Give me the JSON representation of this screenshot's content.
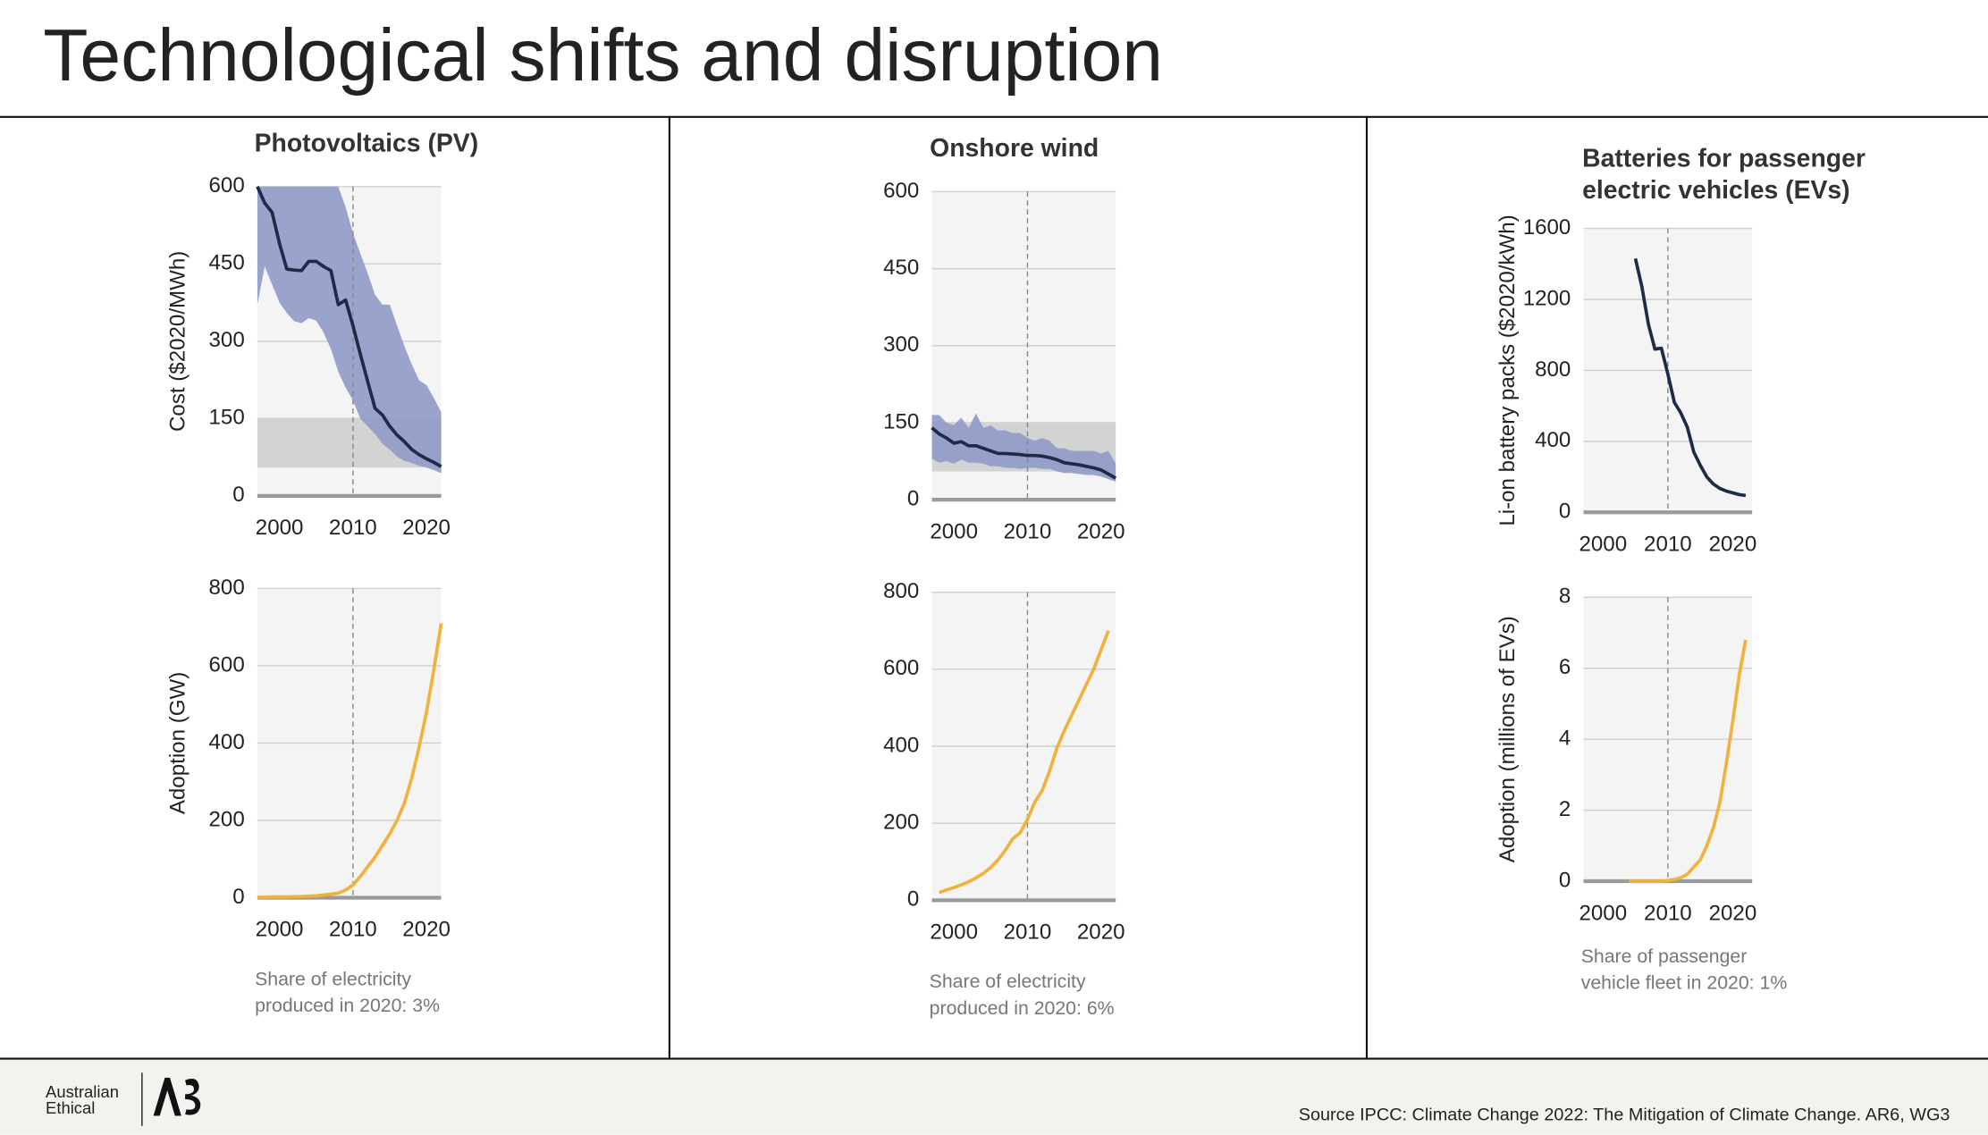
{
  "title": "Technological shifts and disruption",
  "chart_data": [
    {
      "type": "line",
      "title": [
        "Photovoltaics (PV)"
      ],
      "ylabel": "Cost ($2020/MWh)",
      "x": [
        1997,
        1998,
        1999,
        2000,
        2001,
        2002,
        2003,
        2004,
        2005,
        2006,
        2007,
        2008,
        2009,
        2010,
        2011,
        2012,
        2013,
        2014,
        2015,
        2016,
        2017,
        2018,
        2019,
        2020,
        2021,
        2022
      ],
      "values": [
        600,
        568,
        550,
        490,
        440,
        438,
        437,
        455,
        455,
        445,
        437,
        371,
        380,
        330,
        275,
        222,
        170,
        157,
        135,
        118,
        105,
        90,
        80,
        72,
        65,
        57
      ],
      "color": "#1f2a48",
      "range": {
        "color": "#8f9ac6",
        "upper": [
          600,
          600,
          600,
          600,
          600,
          600,
          600,
          600,
          600,
          600,
          600,
          600,
          560,
          510,
          470,
          432,
          390,
          371,
          371,
          330,
          290,
          255,
          224,
          215,
          190,
          162
        ],
        "lower": [
          371,
          445,
          410,
          375,
          355,
          339,
          335,
          345,
          340,
          317,
          285,
          241,
          210,
          185,
          150,
          135,
          120,
          101,
          90,
          76,
          68,
          64,
          58,
          55,
          50,
          44
        ]
      },
      "shaded_range": [
        55,
        150
      ],
      "shaded_color": "#d3d3d3",
      "reference_x": 2010,
      "xlim": [
        1997,
        2022
      ],
      "xticks": [
        2000,
        2010,
        2020
      ],
      "ylim": [
        0,
        600
      ],
      "yticks": [
        0,
        150,
        300,
        450,
        600
      ],
      "grid": true
    },
    {
      "type": "line",
      "ylabel": "Adoption (GW)",
      "x": [
        1997,
        1998,
        1999,
        2000,
        2001,
        2002,
        2003,
        2004,
        2005,
        2006,
        2007,
        2008,
        2009,
        2010,
        2011,
        2012,
        2013,
        2014,
        2015,
        2016,
        2017,
        2018,
        2019,
        2020,
        2021,
        2022
      ],
      "values": [
        1,
        1,
        2,
        2,
        2,
        3,
        3,
        4,
        5,
        7,
        9,
        12,
        20,
        33,
        55,
        80,
        105,
        135,
        165,
        200,
        245,
        310,
        390,
        480,
        590,
        710
      ],
      "color": "#f0b23e",
      "reference_x": 2010,
      "note": [
        "Share of electricity",
        "produced in 2020: 3%"
      ],
      "xlim": [
        1997,
        2022
      ],
      "xticks": [
        2000,
        2010,
        2020
      ],
      "ylim": [
        0,
        800
      ],
      "yticks": [
        0,
        200,
        400,
        600,
        800
      ],
      "grid": true
    },
    {
      "type": "line",
      "title": [
        "Onshore wind"
      ],
      "x": [
        1997,
        1998,
        1999,
        2000,
        2001,
        2002,
        2003,
        2004,
        2005,
        2006,
        2007,
        2008,
        2009,
        2010,
        2011,
        2012,
        2013,
        2014,
        2015,
        2016,
        2017,
        2018,
        2019,
        2020,
        2021,
        2022
      ],
      "values": [
        140,
        128,
        120,
        110,
        113,
        105,
        105,
        100,
        95,
        90,
        90,
        89,
        88,
        86,
        86,
        85,
        82,
        78,
        72,
        70,
        68,
        65,
        62,
        58,
        50,
        42
      ],
      "color": "#1f2a48",
      "range": {
        "color": "#8f9ac6",
        "upper": [
          165,
          165,
          150,
          145,
          160,
          140,
          168,
          140,
          145,
          135,
          135,
          130,
          130,
          120,
          115,
          120,
          115,
          100,
          100,
          95,
          95,
          95,
          95,
          90,
          95,
          70
        ],
        "lower": [
          80,
          72,
          75,
          70,
          78,
          72,
          72,
          70,
          65,
          65,
          62,
          62,
          60,
          62,
          62,
          60,
          60,
          55,
          52,
          52,
          50,
          48,
          48,
          45,
          40,
          35
        ]
      },
      "shaded_range": [
        55,
        150
      ],
      "shaded_color": "#d3d3d3",
      "reference_x": 2010,
      "xlim": [
        1997,
        2022
      ],
      "xticks": [
        2000,
        2010,
        2020
      ],
      "ylim": [
        0,
        600
      ],
      "yticks": [
        0,
        150,
        300,
        450,
        600
      ],
      "grid": true
    },
    {
      "type": "line",
      "x": [
        1998,
        1999,
        2000,
        2001,
        2002,
        2003,
        2004,
        2005,
        2006,
        2007,
        2008,
        2009,
        2010,
        2011,
        2012,
        2013,
        2014,
        2015,
        2016,
        2017,
        2018,
        2019,
        2020,
        2021
      ],
      "values": [
        20,
        27,
        33,
        40,
        48,
        58,
        70,
        85,
        105,
        130,
        160,
        175,
        210,
        255,
        285,
        335,
        395,
        440,
        480,
        520,
        560,
        600,
        650,
        700
      ],
      "color": "#f0b23e",
      "reference_x": 2010,
      "note": [
        "Share of electricity",
        "produced in 2020: 6%"
      ],
      "xlim": [
        1997,
        2022
      ],
      "xticks": [
        2000,
        2010,
        2020
      ],
      "ylim": [
        0,
        800
      ],
      "yticks": [
        0,
        200,
        400,
        600,
        800
      ],
      "grid": true
    },
    {
      "type": "line",
      "title": [
        "Batteries for passenger",
        "electric vehicles (EVs)"
      ],
      "ylabel": "Li-on battery packs ($2020/kWh)",
      "x": [
        2005,
        2006,
        2007,
        2008,
        2009,
        2010,
        2011,
        2012,
        2013,
        2014,
        2015,
        2016,
        2017,
        2018,
        2019,
        2020,
        2021,
        2022
      ],
      "values": [
        1430,
        1270,
        1060,
        920,
        925,
        780,
        620,
        560,
        480,
        340,
        265,
        200,
        160,
        135,
        120,
        110,
        100,
        95
      ],
      "color": "#1f2a48",
      "reference_x": 2010,
      "xlim": [
        1997,
        2023
      ],
      "xticks": [
        2000,
        2010,
        2020
      ],
      "ylim": [
        0,
        1600
      ],
      "yticks": [
        0,
        400,
        800,
        1200,
        1600
      ],
      "grid": true
    },
    {
      "type": "line",
      "ylabel": "Adoption (millions of EVs)",
      "x": [
        2004,
        2005,
        2006,
        2007,
        2008,
        2009,
        2010,
        2011,
        2012,
        2013,
        2014,
        2015,
        2016,
        2017,
        2018,
        2019,
        2020,
        2021,
        2022
      ],
      "values": [
        0,
        0,
        0,
        0,
        0,
        0,
        0.02,
        0.05,
        0.1,
        0.2,
        0.4,
        0.6,
        1,
        1.5,
        2.2,
        3.3,
        4.5,
        5.8,
        6.8
      ],
      "color": "#f0b23e",
      "reference_x": 2010,
      "note": [
        "Share of passenger",
        "vehicle fleet in 2020: 1%"
      ],
      "xlim": [
        1997,
        2023
      ],
      "xticks": [
        2000,
        2010,
        2020
      ],
      "ylim": [
        0,
        8
      ],
      "yticks": [
        0,
        2,
        4,
        6,
        8
      ],
      "grid": true
    }
  ],
  "footer": {
    "brand": [
      "Australian",
      "Ethical"
    ],
    "source": "Source IPCC: Climate Change 2022: The Mitigation of Climate Change. AR6, WG3"
  }
}
